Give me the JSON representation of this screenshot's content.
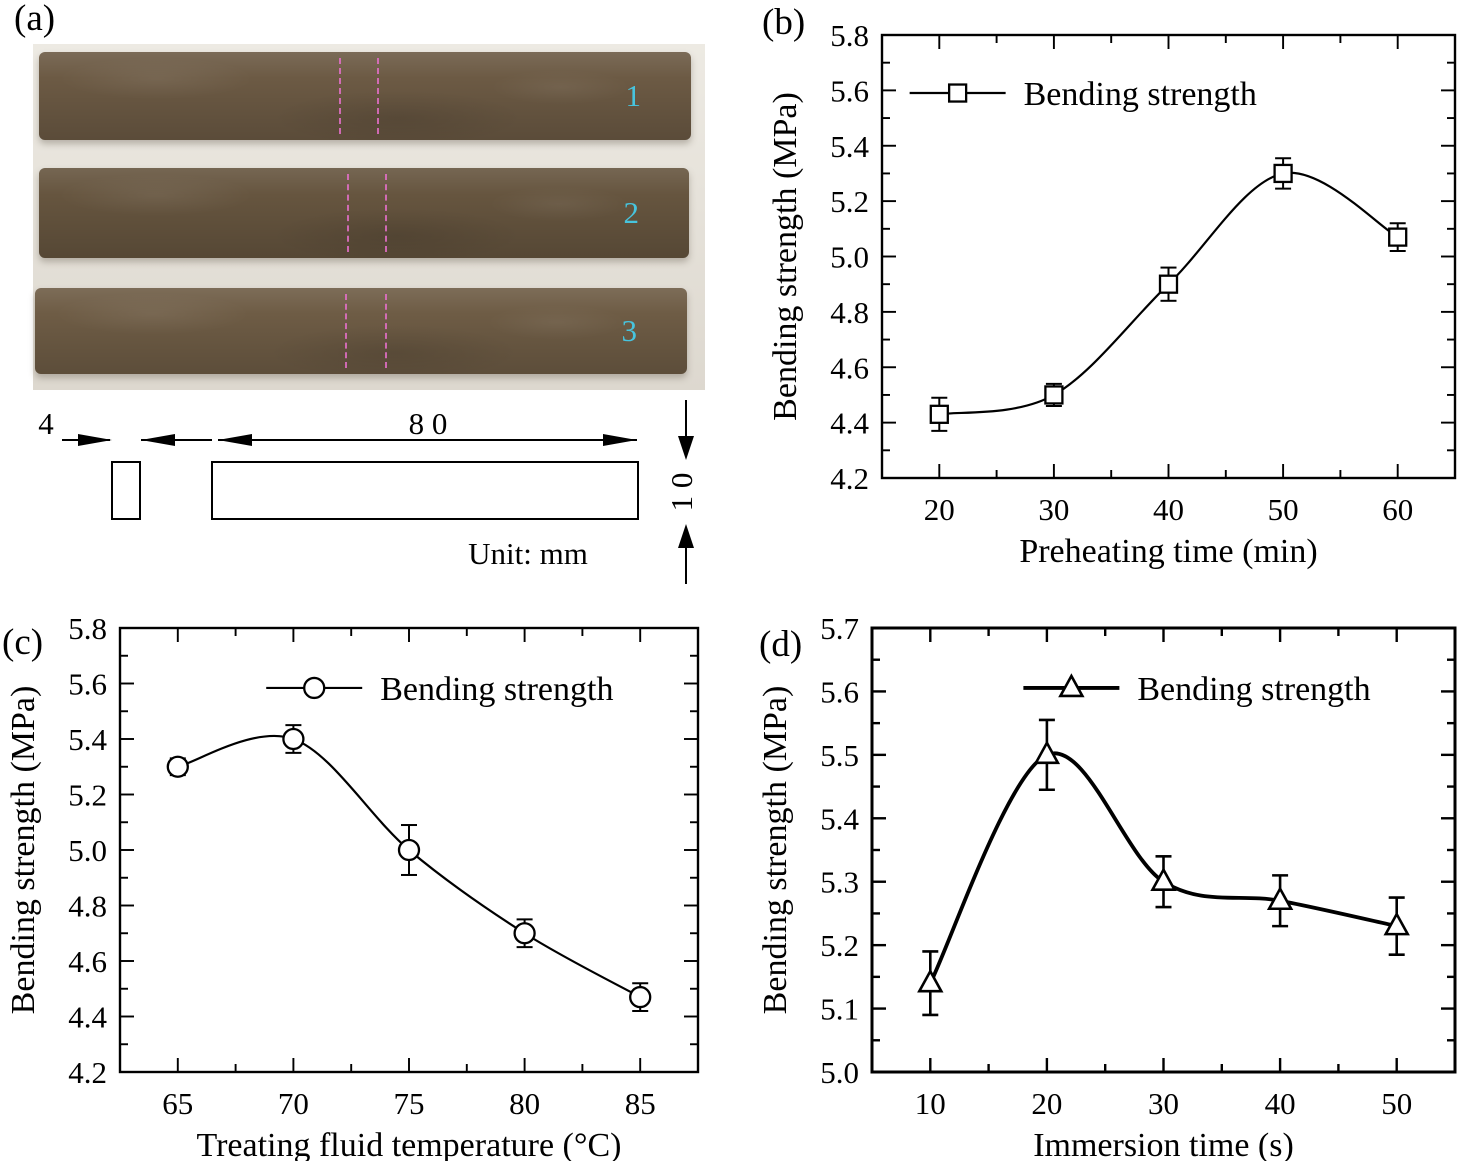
{
  "figure": {
    "background": "#ffffff"
  },
  "panel_a": {
    "label": "(a)",
    "specimens": [
      {
        "number": "1"
      },
      {
        "number": "2"
      },
      {
        "number": "3"
      }
    ],
    "drawing": {
      "dim_width_small": "4",
      "dim_width_large": "8 0",
      "dim_height": "1 0",
      "unit_label": "Unit: mm"
    },
    "colors": {
      "specimen_number": "#47c4de",
      "cut_mark": "#e46fc9",
      "specimen_body": "#675642",
      "photo_background": "#e7e3db"
    }
  },
  "panel_labels": {
    "b": "(b)",
    "c": "(c)",
    "d": "(d)"
  },
  "chart_data": [
    {
      "id": "chart-b",
      "panel": "b",
      "type": "line",
      "marker": "square",
      "legend": "Bending strength",
      "xlabel": "Preheating time (min)",
      "ylabel": "Bending strength (MPa)",
      "x": [
        20,
        30,
        40,
        50,
        60
      ],
      "y": [
        4.43,
        4.5,
        4.9,
        5.3,
        5.07
      ],
      "yerr": [
        0.06,
        0.04,
        0.06,
        0.055,
        0.05
      ],
      "xlim": [
        15,
        65
      ],
      "ylim": [
        4.2,
        5.8
      ],
      "xticklabels": [
        "20",
        "30",
        "40",
        "50",
        "60"
      ],
      "yticklabels": [
        "4.2",
        "4.4",
        "4.6",
        "4.8",
        "5.0",
        "5.2",
        "5.4",
        "5.6",
        "5.8"
      ],
      "minor_ticks": true,
      "grid": false,
      "legend_pos": {
        "fx": 0.132,
        "fy": 0.131
      },
      "line_width": 2.2,
      "frame_width": 2.4
    },
    {
      "id": "chart-c",
      "panel": "c",
      "type": "line",
      "marker": "circle",
      "legend": "Bending strength",
      "xlabel": "Treating fluid temperature (°C)",
      "ylabel": "Bending strength (MPa)",
      "x": [
        65,
        70,
        75,
        80,
        85
      ],
      "y": [
        5.3,
        5.4,
        5.0,
        4.7,
        4.47
      ],
      "yerr": [
        0.03,
        0.05,
        0.09,
        0.05,
        0.05
      ],
      "xlim": [
        62.5,
        87.5
      ],
      "ylim": [
        4.2,
        5.8
      ],
      "xticklabels": [
        "65",
        "70",
        "75",
        "80",
        "85"
      ],
      "yticklabels": [
        "4.2",
        "4.4",
        "4.6",
        "4.8",
        "5.0",
        "5.2",
        "5.4",
        "5.6",
        "5.8"
      ],
      "minor_ticks": true,
      "grid": false,
      "legend_pos": {
        "fx": 0.336,
        "fy": 0.135
      },
      "line_width": 2.2,
      "frame_width": 2.4
    },
    {
      "id": "chart-d",
      "panel": "d",
      "type": "line",
      "marker": "triangle",
      "legend": "Bending strength",
      "xlabel": "Immersion time (s)",
      "ylabel": "Bending strength  (MPa)",
      "x": [
        10,
        20,
        30,
        40,
        50
      ],
      "y": [
        5.14,
        5.5,
        5.3,
        5.27,
        5.23
      ],
      "yerr": [
        0.05,
        0.055,
        0.04,
        0.04,
        0.045
      ],
      "xlim": [
        5,
        55
      ],
      "ylim": [
        5.0,
        5.7
      ],
      "xticklabels": [
        "10",
        "20",
        "30",
        "40",
        "50"
      ],
      "yticklabels": [
        "5.0",
        "5.1",
        "5.2",
        "5.3",
        "5.4",
        "5.5",
        "5.6",
        "5.7"
      ],
      "minor_ticks": true,
      "grid": false,
      "legend_pos": {
        "fx": 0.342,
        "fy": 0.135
      },
      "line_width": 3.8,
      "frame_width": 3.0
    }
  ]
}
